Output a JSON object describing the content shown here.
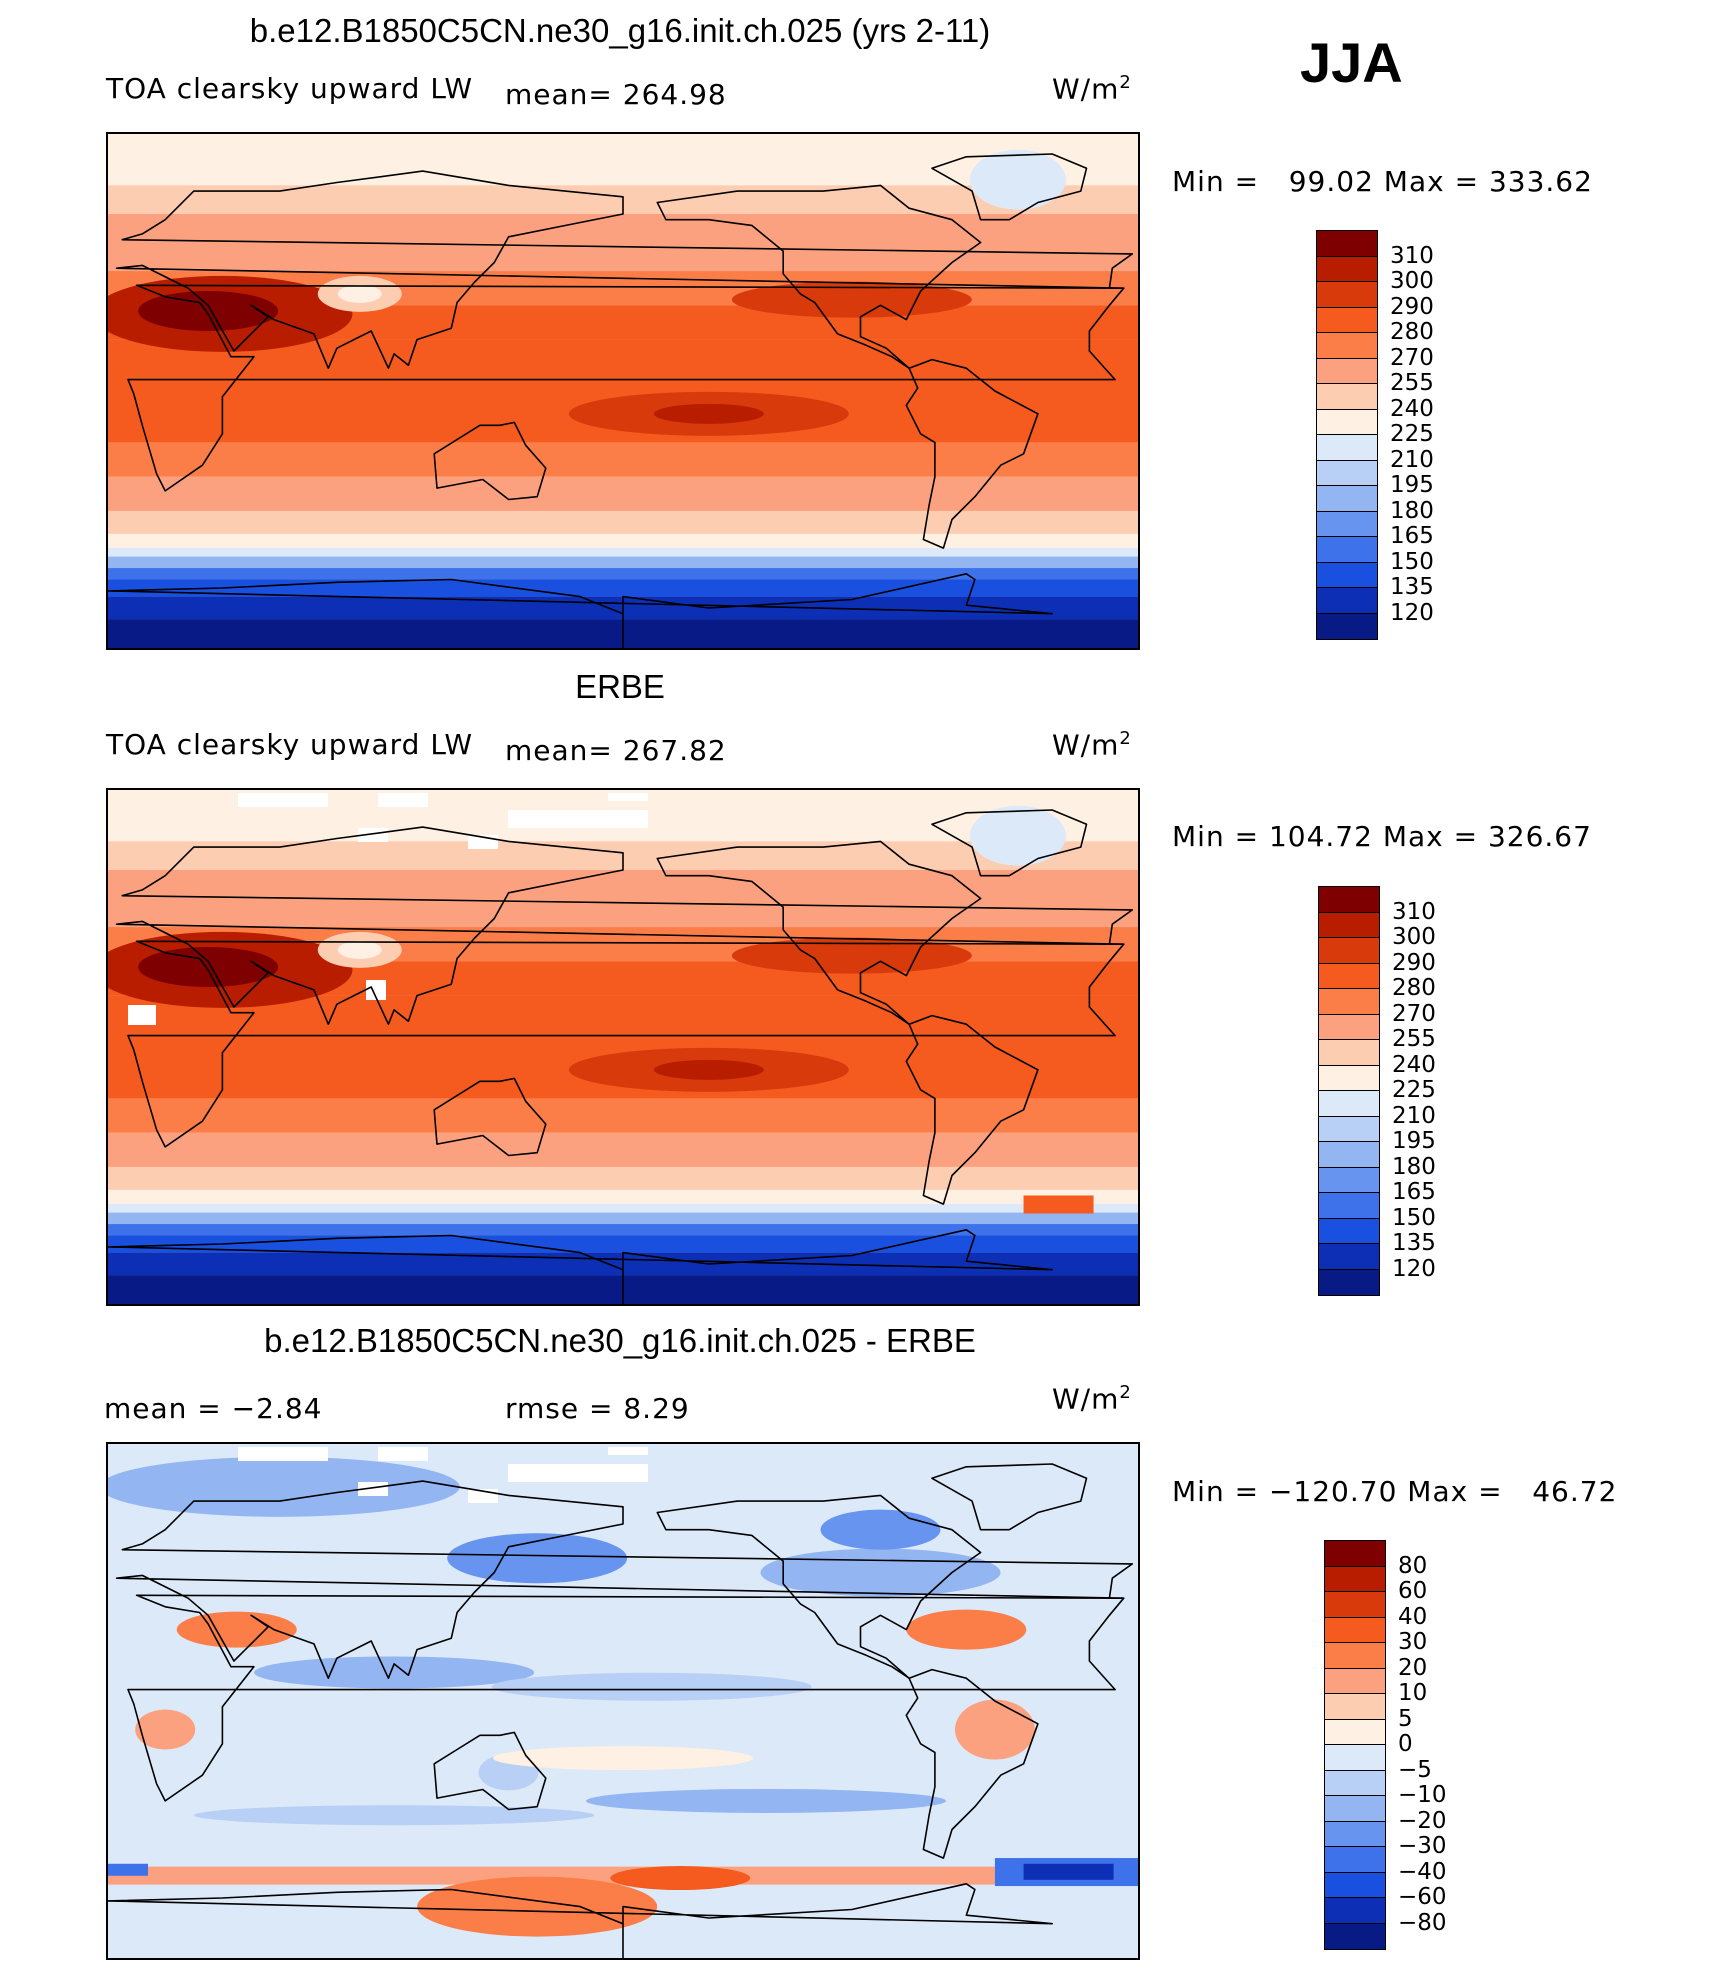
{
  "season": "JJA",
  "panels": [
    {
      "title": "b.e12.B1850C5CN.ne30_g16.init.ch.025 (yrs 2-11)",
      "variable": "TOA clearsky upward LW",
      "stat1": "mean= 264.98",
      "stat2": "",
      "units": "W/m",
      "units_sup": "2",
      "minmax": "Min =   99.02 Max = 333.62",
      "levels": [
        "310",
        "300",
        "290",
        "280",
        "270",
        "255",
        "240",
        "225",
        "210",
        "195",
        "180",
        "165",
        "150",
        "135",
        "120"
      ],
      "colors": [
        "#7f0000",
        "#b81d00",
        "#d93a0c",
        "#f55a1f",
        "#fb7d48",
        "#fca17f",
        "#fdcdb2",
        "#fef0e2",
        "#dce9f9",
        "#b8d0f5",
        "#93b5f1",
        "#6794ef",
        "#3e72ea",
        "#1a50e0",
        "#0c2fb6",
        "#071a85"
      ],
      "dataset": "model"
    },
    {
      "title": "ERBE",
      "variable": "TOA clearsky upward LW",
      "stat1": "mean= 267.82",
      "stat2": "",
      "units": "W/m",
      "units_sup": "2",
      "minmax": "Min = 104.72 Max = 326.67",
      "levels": [
        "310",
        "300",
        "290",
        "280",
        "270",
        "255",
        "240",
        "225",
        "210",
        "195",
        "180",
        "165",
        "150",
        "135",
        "120"
      ],
      "colors": [
        "#7f0000",
        "#b81d00",
        "#d93a0c",
        "#f55a1f",
        "#fb7d48",
        "#fca17f",
        "#fdcdb2",
        "#fef0e2",
        "#dce9f9",
        "#b8d0f5",
        "#93b5f1",
        "#6794ef",
        "#3e72ea",
        "#1a50e0",
        "#0c2fb6",
        "#071a85"
      ],
      "dataset": "obs"
    },
    {
      "title": "b.e12.B1850C5CN.ne30_g16.init.ch.025 - ERBE",
      "variable": "",
      "stat1": "mean =   −2.84",
      "stat2": "rmse =    8.29",
      "units": "W/m",
      "units_sup": "2",
      "minmax": "Min = −120.70 Max =   46.72",
      "levels": [
        "80",
        "60",
        "40",
        "30",
        "20",
        "10",
        "5",
        "0",
        "−5",
        "−10",
        "−20",
        "−30",
        "−40",
        "−60",
        "−80"
      ],
      "colors": [
        "#7f0000",
        "#b81d00",
        "#d93a0c",
        "#f55a1f",
        "#fb7d48",
        "#fca17f",
        "#fdcdb2",
        "#fef0e2",
        "#dce9f9",
        "#b8d0f5",
        "#93b5f1",
        "#6794ef",
        "#3e72ea",
        "#1a50e0",
        "#0c2fb6",
        "#071a85"
      ],
      "dataset": "diff"
    }
  ]
}
